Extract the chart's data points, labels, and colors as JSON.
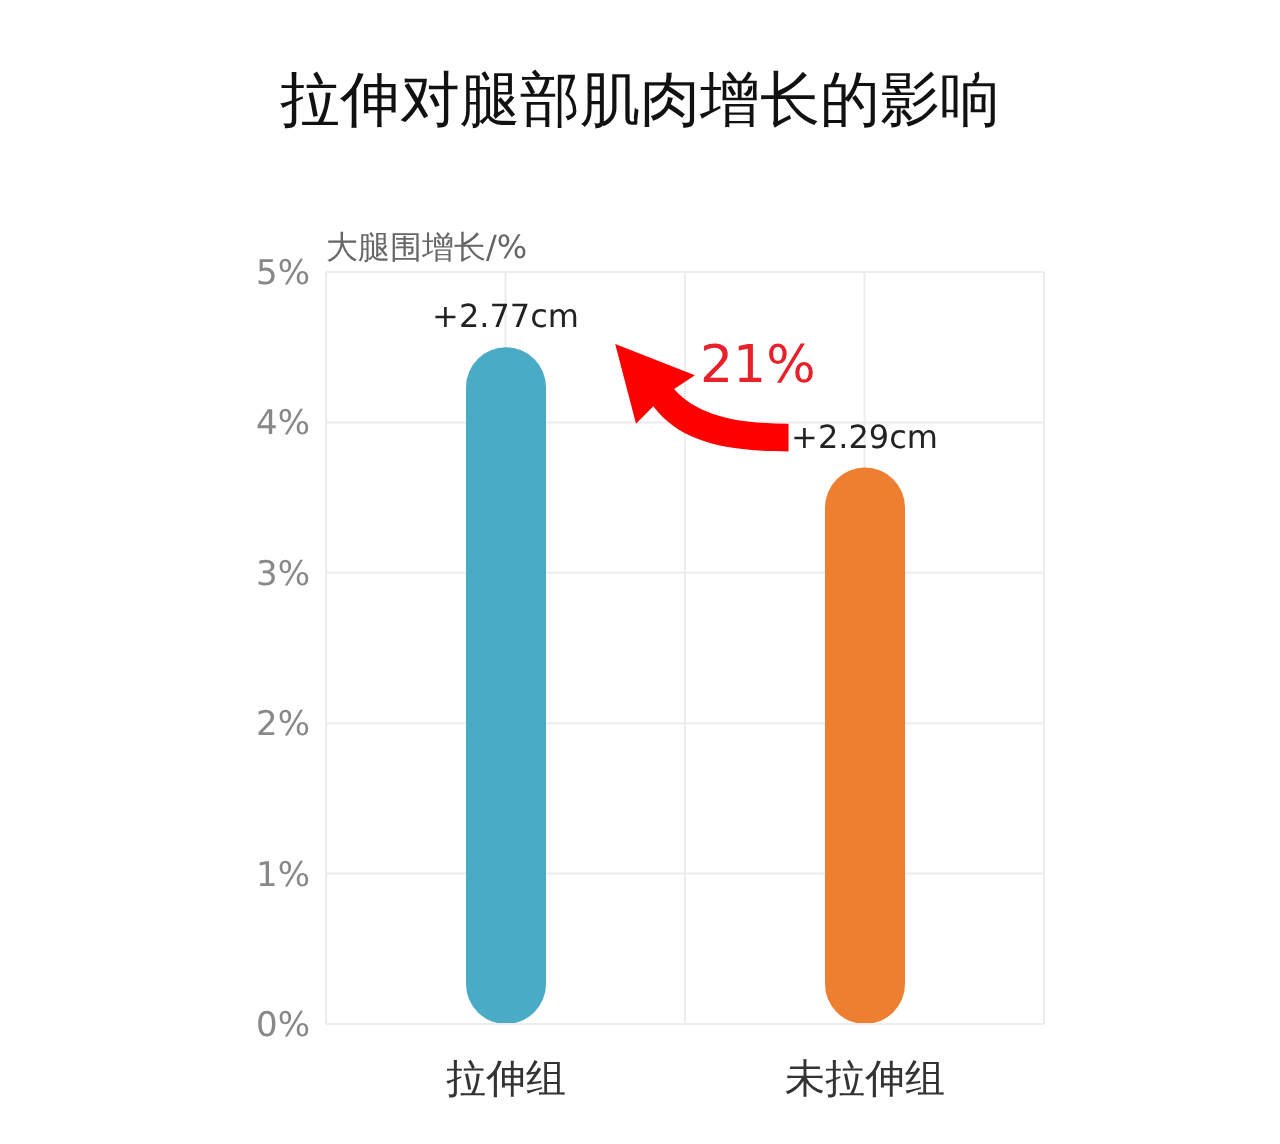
{
  "chart_data": {
    "type": "bar",
    "title": "拉伸对腿部肌肉增长的影响",
    "ylabel": "大腿围增长/%",
    "categories": [
      "拉伸组",
      "未拉伸组"
    ],
    "values": [
      4.5,
      3.7
    ],
    "colors": [
      "#4aabc6",
      "#ef7f30"
    ],
    "ylim": [
      0,
      5
    ],
    "yticks": [
      {
        "value": 0,
        "label": "0%"
      },
      {
        "value": 1,
        "label": "1%"
      },
      {
        "value": 2,
        "label": "2%"
      },
      {
        "value": 3,
        "label": "3%"
      },
      {
        "value": 4,
        "label": "4%"
      },
      {
        "value": 5,
        "label": "5%"
      }
    ],
    "grid": true,
    "annotations": [
      "21%",
      {
        "text": "+2.77cm",
        "x": "拉伸组",
        "y": 4.5
      },
      {
        "text": "+2.29cm",
        "x": "未拉伸组",
        "y": 3.7
      }
    ]
  }
}
